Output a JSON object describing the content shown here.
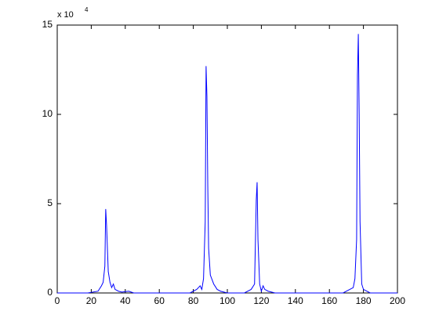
{
  "chart_data": {
    "type": "line",
    "y_multiplier": "x 10",
    "y_multiplier_exponent": "4",
    "x": [
      0,
      18,
      24,
      26,
      27,
      28,
      28.5,
      29,
      30,
      31,
      32,
      33,
      34,
      36,
      38,
      42,
      45,
      78,
      82,
      84,
      85,
      86,
      87,
      87.5,
      88,
      88.5,
      89,
      90,
      92,
      94,
      96,
      100,
      110,
      114,
      116,
      117,
      117.5,
      118,
      119,
      120,
      121,
      122,
      124,
      128,
      168,
      172,
      174,
      175,
      176,
      176.5,
      177,
      177.5,
      178,
      179,
      180,
      182,
      184,
      200
    ],
    "series": [
      {
        "color": "#0000ff",
        "values": [
          0,
          0,
          0.1,
          0.4,
          0.6,
          1.5,
          4.7,
          3.8,
          1.2,
          0.6,
          0.3,
          0.5,
          0.2,
          0.1,
          0.05,
          0.1,
          0,
          0,
          0.2,
          0.4,
          0.2,
          0.8,
          4,
          12.7,
          11,
          6,
          2.5,
          1,
          0.5,
          0.2,
          0.1,
          0,
          0,
          0.2,
          0.5,
          5.2,
          6.2,
          3,
          0.5,
          0.1,
          0.4,
          0.2,
          0.1,
          0,
          0,
          0.2,
          0.3,
          0.8,
          3,
          12.2,
          14.5,
          10,
          4,
          0.5,
          0.2,
          0.1,
          0,
          0
        ]
      }
    ],
    "xlim": [
      0,
      200
    ],
    "xticks": [
      0,
      20,
      40,
      60,
      80,
      100,
      120,
      140,
      160,
      180,
      200
    ],
    "ylim": [
      0,
      15
    ],
    "yticks": [
      0,
      5,
      10,
      15
    ]
  }
}
